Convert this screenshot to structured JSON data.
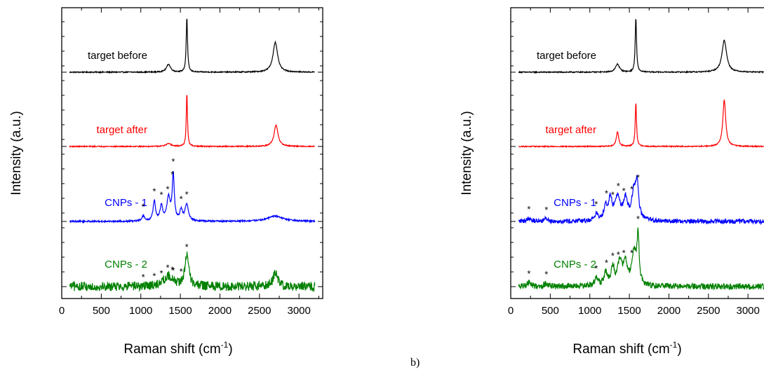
{
  "panel_tag": "b)",
  "chart_data": [
    {
      "type": "line",
      "xlabel": "Raman shift (cm-1)",
      "xlabel_main": "Raman shift (cm",
      "xlabel_sup": "-1",
      "xlabel_close": ")",
      "ylabel": "Intensity (a.u.)",
      "xlim": [
        0,
        3300
      ],
      "xticks": [
        0,
        500,
        1000,
        1500,
        2000,
        2500,
        3000
      ],
      "xrange": [
        100,
        3200
      ],
      "series": [
        {
          "name": "target before",
          "color": "#000000",
          "baseline": 0.0,
          "peaks": [
            [
              1350,
              0.12,
              30
            ],
            [
              1582,
              0.82,
              10
            ],
            [
              2700,
              0.45,
              35
            ]
          ],
          "noise": 0.008
        },
        {
          "name": "target after",
          "color": "#ff0000",
          "baseline": 0.0,
          "peaks": [
            [
              1350,
              0.04,
              40
            ],
            [
              1582,
              0.8,
              9
            ],
            [
              2710,
              0.32,
              30
            ]
          ],
          "noise": 0.008
        },
        {
          "name": "CNPs - 1",
          "color": "#0000ff",
          "baseline": 0.0,
          "peaks": [
            [
              1030,
              0.08,
              20
            ],
            [
              1170,
              0.3,
              18
            ],
            [
              1260,
              0.22,
              20
            ],
            [
              1350,
              0.35,
              25
            ],
            [
              1410,
              0.7,
              15
            ],
            [
              1510,
              0.15,
              20
            ],
            [
              1580,
              0.25,
              25
            ],
            [
              2700,
              0.08,
              120
            ]
          ],
          "noise": 0.012
        },
        {
          "name": "CNPs - 2",
          "color": "#008000",
          "baseline": 0.0,
          "peaks": [
            [
              1350,
              0.15,
              80
            ],
            [
              1582,
              0.45,
              30
            ],
            [
              2700,
              0.22,
              35
            ]
          ],
          "noise": 0.07
        }
      ],
      "stars_x": [
        1030,
        1170,
        1260,
        1340,
        1400,
        1410,
        1510,
        1580
      ]
    },
    {
      "type": "line",
      "xlabel": "Raman shift (cm-1)",
      "xlabel_main": "Raman shift (cm",
      "xlabel_sup": "-1",
      "xlabel_close": ")",
      "ylabel": "Intensity (a.u.)",
      "xlim": [
        0,
        3300
      ],
      "xticks": [
        0,
        500,
        1000,
        1500,
        2000,
        2500,
        3000
      ],
      "xrange": [
        100,
        3200
      ],
      "series": [
        {
          "name": "target before",
          "color": "#000000",
          "baseline": 0.0,
          "peaks": [
            [
              1350,
              0.12,
              30
            ],
            [
              1582,
              0.82,
              10
            ],
            [
              2700,
              0.48,
              35
            ]
          ],
          "noise": 0.008
        },
        {
          "name": "target after",
          "color": "#ff0000",
          "baseline": 0.0,
          "peaks": [
            [
              1350,
              0.22,
              18
            ],
            [
              1582,
              0.65,
              10
            ],
            [
              2700,
              0.7,
              22
            ]
          ],
          "noise": 0.008
        },
        {
          "name": "CNPs - 1",
          "color": "#0000ff",
          "baseline": 0.0,
          "peaks": [
            [
              230,
              0.05,
              30
            ],
            [
              450,
              0.04,
              30
            ],
            [
              1080,
              0.1,
              25
            ],
            [
              1200,
              0.22,
              25
            ],
            [
              1260,
              0.3,
              25
            ],
            [
              1350,
              0.35,
              40
            ],
            [
              1450,
              0.3,
              30
            ],
            [
              1560,
              0.45,
              35
            ],
            [
              1600,
              0.45,
              20
            ]
          ],
          "noise": 0.035
        },
        {
          "name": "CNPs - 2",
          "color": "#008000",
          "baseline": 0.0,
          "peaks": [
            [
              230,
              0.06,
              30
            ],
            [
              450,
              0.05,
              30
            ],
            [
              1080,
              0.12,
              25
            ],
            [
              1200,
              0.2,
              25
            ],
            [
              1290,
              0.25,
              25
            ],
            [
              1380,
              0.35,
              35
            ],
            [
              1450,
              0.3,
              30
            ],
            [
              1560,
              0.5,
              35
            ],
            [
              1610,
              0.7,
              15
            ]
          ],
          "noise": 0.045
        }
      ],
      "stars_x": [
        230,
        450,
        1080,
        1210,
        1290,
        1360,
        1430,
        1530,
        1610
      ]
    }
  ]
}
